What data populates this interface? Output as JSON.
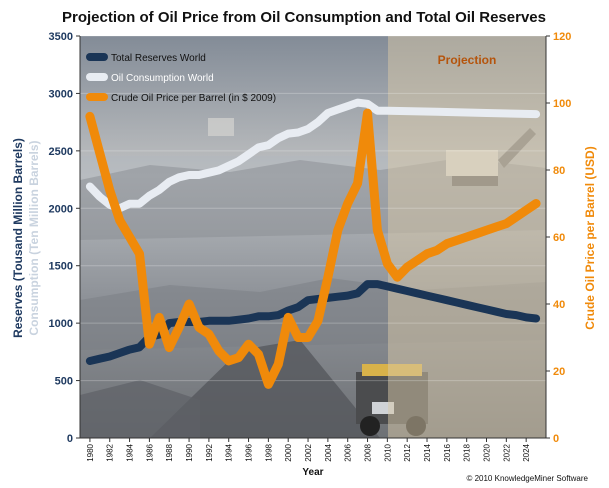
{
  "chart_data": {
    "type": "line",
    "title": "Projection of Oil Price from Oil Consumption and Total Oil Reserves",
    "xlabel": "Year",
    "ylabel_left_1": "Reserves (Tousand Million Barrels)",
    "ylabel_left_2": "Consumption (Ten Million Barrels)",
    "ylabel_right": "Crude Oil Price per Barrel (USD)",
    "projection_label": "Projection",
    "projection_start": 2010,
    "copyright": "© 2010 KnowledgeMiner Software",
    "xlim": [
      1979,
      2026
    ],
    "y_left_lim": [
      0,
      3500
    ],
    "y_right_lim": [
      0,
      120
    ],
    "x_ticks": [
      1980,
      1982,
      1984,
      1986,
      1988,
      1990,
      1992,
      1994,
      1996,
      1998,
      2000,
      2002,
      2004,
      2006,
      2008,
      2010,
      2012,
      2014,
      2016,
      2018,
      2020,
      2022,
      2024
    ],
    "y_left_ticks": [
      0,
      500,
      1000,
      1500,
      2000,
      2500,
      3000,
      3500
    ],
    "y_right_ticks": [
      0,
      20,
      40,
      60,
      80,
      100,
      120
    ],
    "legend_position": "top-left",
    "colors": {
      "reserves": "#1a3556",
      "consumption": "#e8ecf2",
      "price": "#f08a0a",
      "left_axis": "#1f3a60",
      "right_axis": "#f08a0a",
      "projection_label": "#b5540c"
    },
    "series": [
      {
        "name": "Total Reserves World",
        "axis": "left",
        "x": [
          1980,
          1981,
          1982,
          1983,
          1984,
          1985,
          1986,
          1987,
          1988,
          1989,
          1990,
          1991,
          1992,
          1993,
          1994,
          1995,
          1996,
          1997,
          1998,
          1999,
          2000,
          2001,
          2002,
          2003,
          2004,
          2005,
          2006,
          2007,
          2008,
          2009,
          2010,
          2011,
          2012,
          2013,
          2014,
          2015,
          2016,
          2017,
          2018,
          2019,
          2020,
          2021,
          2022,
          2023,
          2024,
          2025
        ],
        "values": [
          670,
          690,
          710,
          740,
          770,
          790,
          880,
          900,
          1000,
          1010,
          1010,
          1010,
          1020,
          1020,
          1020,
          1030,
          1040,
          1060,
          1060,
          1070,
          1110,
          1140,
          1200,
          1210,
          1220,
          1230,
          1240,
          1260,
          1340,
          1340,
          1320,
          1300,
          1280,
          1260,
          1240,
          1220,
          1200,
          1180,
          1160,
          1140,
          1120,
          1100,
          1080,
          1070,
          1050,
          1040
        ]
      },
      {
        "name": "Oil Consumption World",
        "axis": "left",
        "x": [
          1980,
          1981,
          1982,
          1983,
          1984,
          1985,
          1986,
          1987,
          1988,
          1989,
          1990,
          1991,
          1992,
          1993,
          1994,
          1995,
          1996,
          1997,
          1998,
          1999,
          2000,
          2001,
          2002,
          2003,
          2004,
          2005,
          2006,
          2007,
          2008,
          2009,
          2010,
          2015,
          2020,
          2025
        ],
        "values": [
          2190,
          2100,
          2030,
          2000,
          2040,
          2040,
          2110,
          2160,
          2230,
          2270,
          2290,
          2290,
          2310,
          2330,
          2370,
          2410,
          2470,
          2530,
          2550,
          2610,
          2650,
          2660,
          2690,
          2750,
          2830,
          2860,
          2890,
          2920,
          2910,
          2850,
          2850,
          2840,
          2830,
          2820
        ]
      },
      {
        "name": "Crude Oil Price per Barrel (in $ 2009)",
        "axis": "right",
        "x": [
          1980,
          1981,
          1982,
          1983,
          1984,
          1985,
          1986,
          1987,
          1988,
          1989,
          1990,
          1991,
          1992,
          1993,
          1994,
          1995,
          1996,
          1997,
          1998,
          1999,
          2000,
          2001,
          2002,
          2003,
          2004,
          2005,
          2006,
          2007,
          2008,
          2009,
          2010,
          2011,
          2012,
          2013,
          2014,
          2015,
          2016,
          2017,
          2018,
          2019,
          2020,
          2021,
          2022,
          2023,
          2024,
          2025
        ],
        "values": [
          96,
          85,
          74,
          65,
          60,
          55,
          28,
          36,
          27,
          33,
          40,
          33,
          31,
          26,
          23,
          24,
          28,
          25,
          16,
          22,
          36,
          30,
          30,
          35,
          48,
          62,
          70,
          76,
          97,
          62,
          52,
          48,
          51,
          53,
          55,
          56,
          58,
          59,
          60,
          61,
          62,
          63,
          64,
          66,
          68,
          70
        ]
      }
    ]
  }
}
